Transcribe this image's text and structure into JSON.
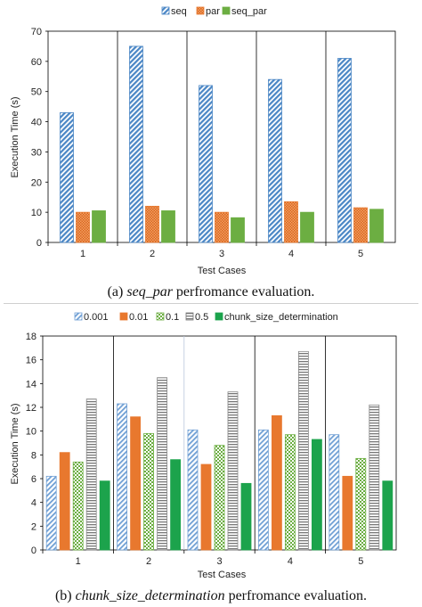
{
  "colors": {
    "seq": "#4a86c5",
    "par": "#e8782e",
    "seq_par": "#6cae42",
    "p0001": "#6f9fd4",
    "p001": "#e8782e",
    "p01": "#6cae42",
    "p05": "#888888",
    "chunk": "#1ca34c",
    "axis": "#000000",
    "grid": "#d0d0d0"
  },
  "chart_data": [
    {
      "type": "bar",
      "title": "",
      "xlabel": "Test Cases",
      "ylabel": "Execution Time (s)",
      "ylim": [
        0,
        70
      ],
      "yticks": [
        0,
        10,
        20,
        30,
        40,
        50,
        60,
        70
      ],
      "categories": [
        "1",
        "2",
        "3",
        "4",
        "5"
      ],
      "legend_position": "top",
      "grid": false,
      "series": [
        {
          "name": "seq",
          "values": [
            43,
            65,
            52,
            54,
            61
          ]
        },
        {
          "name": "par",
          "values": [
            10,
            12,
            10,
            13.5,
            11.5
          ]
        },
        {
          "name": "seq_par",
          "values": [
            10.5,
            10.5,
            8.2,
            10,
            11
          ]
        }
      ]
    },
    {
      "type": "bar",
      "title": "",
      "xlabel": "Test Cases",
      "ylabel": "Execution Time (s)",
      "ylim": [
        0,
        18
      ],
      "yticks": [
        0,
        2,
        4,
        6,
        8,
        10,
        12,
        14,
        16,
        18
      ],
      "categories": [
        "1",
        "2",
        "3",
        "4",
        "5"
      ],
      "legend_position": "top",
      "grid": false,
      "series": [
        {
          "name": "0.001",
          "values": [
            6.2,
            12.3,
            10.1,
            10.1,
            9.7
          ]
        },
        {
          "name": "0.01",
          "values": [
            8.2,
            11.2,
            7.2,
            11.3,
            6.2
          ]
        },
        {
          "name": "0.1",
          "values": [
            7.4,
            9.8,
            8.8,
            9.7,
            7.7
          ]
        },
        {
          "name": "0.5",
          "values": [
            12.7,
            14.5,
            13.3,
            16.7,
            12.2
          ]
        },
        {
          "name": "chunk_size_determination",
          "values": [
            5.8,
            7.6,
            5.6,
            9.3,
            5.8
          ]
        }
      ]
    }
  ],
  "captions": {
    "a_prefix": "(a) ",
    "a_italic": "seq_par",
    "a_suffix": " perfromance evaluation.",
    "b_prefix": "(b) ",
    "b_italic": "chunk_size_determination",
    "b_suffix": " perfromance evaluation."
  }
}
